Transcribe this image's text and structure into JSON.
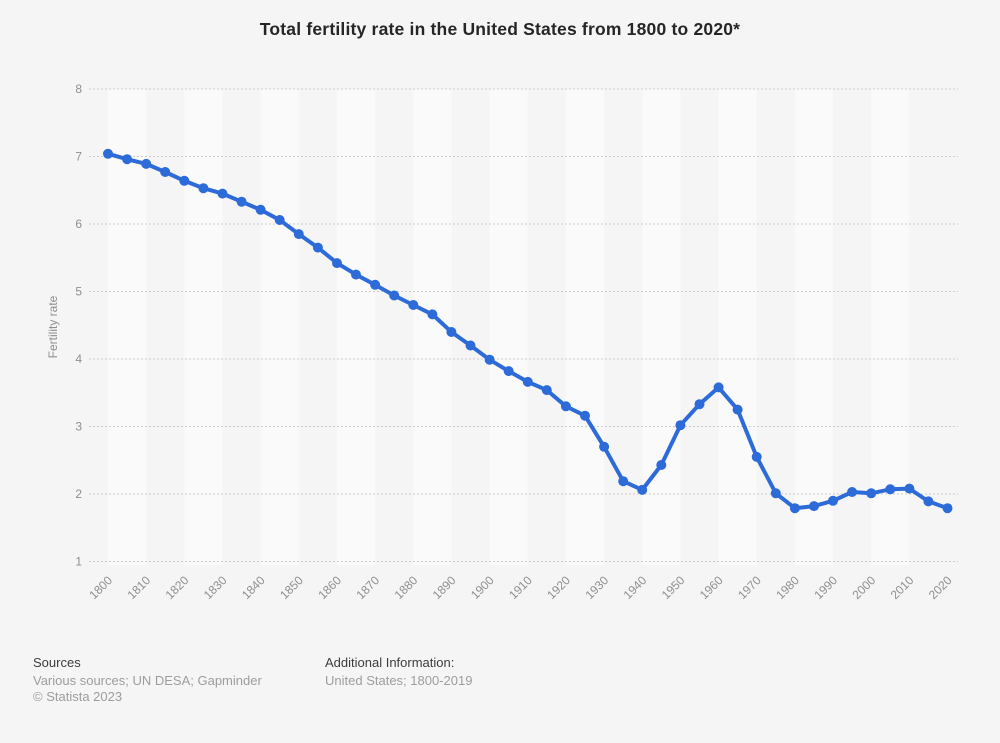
{
  "title": "Total fertility rate in the United States from 1800 to 2020*",
  "footer": {
    "sources_heading": "Sources",
    "sources_line": "Various sources; UN DESA; Gapminder",
    "copyright": "© Statista 2023",
    "additional_heading": "Additional Information:",
    "additional_line": "United States; 1800-2019"
  },
  "colors": {
    "page_background": "#f5f5f5",
    "band_light": "#fafafa",
    "gridline": "#cccccc",
    "line": "#2d6bd9",
    "axis_text": "#8f8f8f",
    "title_text": "#262626",
    "footer_heading": "#3d3d3d",
    "footer_text": "#9d9d9d"
  },
  "chart_data": {
    "type": "line",
    "title": "Total fertility rate in the United States from 1800 to 2020*",
    "xlabel": "",
    "ylabel": "Fertility rate",
    "ylim": [
      1,
      8
    ],
    "y_ticks": [
      8,
      7,
      6,
      5,
      4,
      3,
      2,
      1
    ],
    "x_tick_labels": [
      "1800",
      "1810",
      "1820",
      "1830",
      "1840",
      "1850",
      "1860",
      "1870",
      "1880",
      "1890",
      "1900",
      "1910",
      "1920",
      "1930",
      "1940",
      "1950",
      "1960",
      "1970",
      "1980",
      "1990",
      "2000",
      "2010",
      "2020"
    ],
    "grid": "horizontal-dotted",
    "legend": "none",
    "background_bands": "alternating vertical decade stripes",
    "series": [
      {
        "name": "Fertility rate",
        "color": "#2d6bd9",
        "x": [
          1800,
          1805,
          1810,
          1815,
          1820,
          1825,
          1830,
          1835,
          1840,
          1845,
          1850,
          1855,
          1860,
          1865,
          1870,
          1875,
          1880,
          1885,
          1890,
          1895,
          1900,
          1905,
          1910,
          1915,
          1920,
          1925,
          1930,
          1935,
          1940,
          1945,
          1950,
          1955,
          1960,
          1965,
          1970,
          1975,
          1980,
          1985,
          1990,
          1995,
          2000,
          2005,
          2010,
          2015,
          2020
        ],
        "values": [
          7.04,
          6.96,
          6.89,
          6.77,
          6.64,
          6.53,
          6.45,
          6.33,
          6.21,
          6.06,
          5.85,
          5.65,
          5.42,
          5.25,
          5.1,
          4.94,
          4.8,
          4.66,
          4.4,
          4.2,
          3.99,
          3.82,
          3.66,
          3.54,
          3.3,
          3.16,
          2.7,
          2.19,
          2.06,
          2.43,
          3.02,
          3.33,
          3.58,
          3.25,
          2.55,
          2.01,
          1.79,
          1.82,
          1.9,
          2.03,
          2.01,
          2.07,
          2.08,
          1.89,
          1.79
        ]
      }
    ]
  }
}
